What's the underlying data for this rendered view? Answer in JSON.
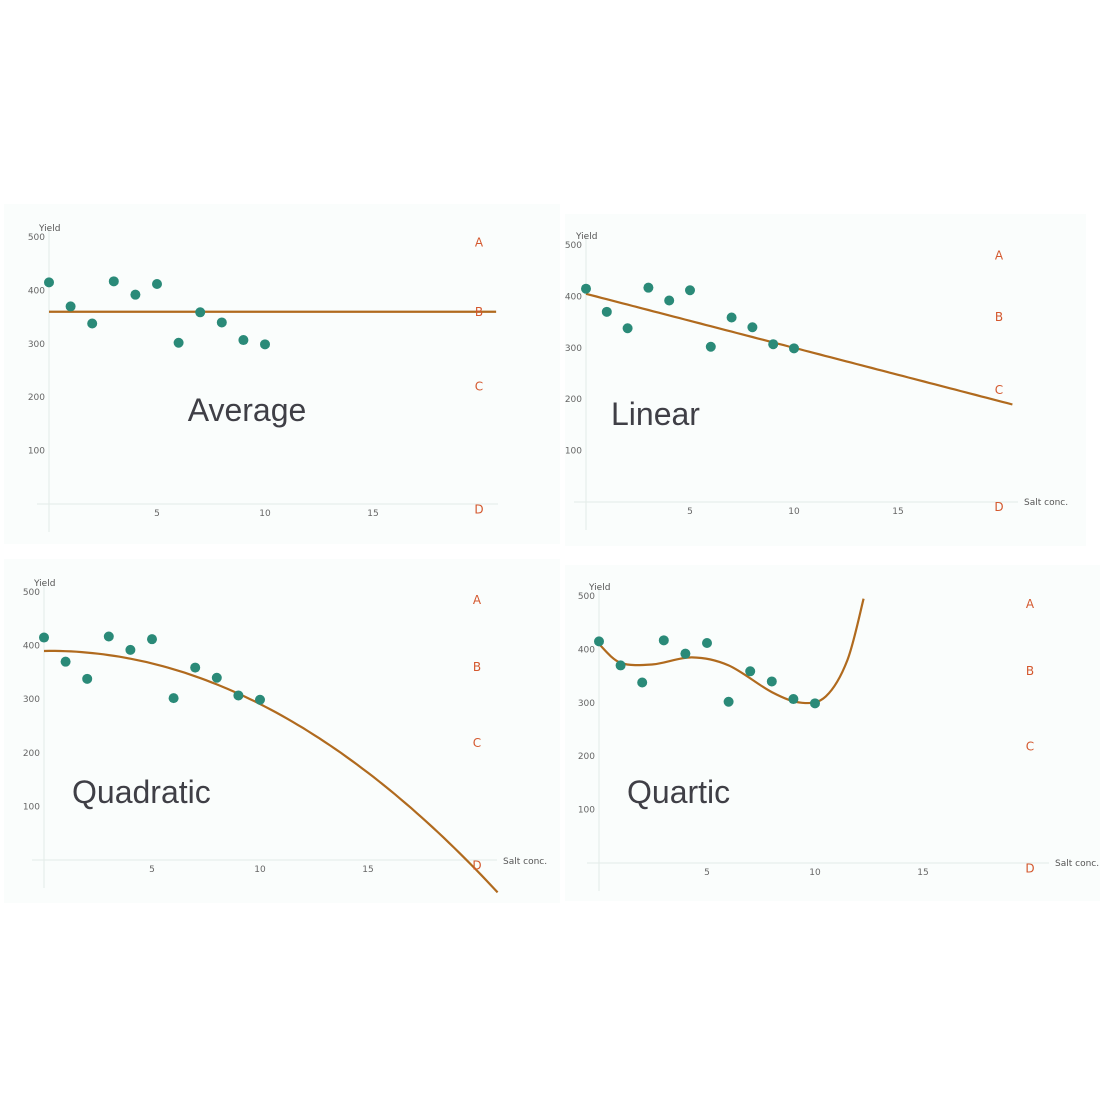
{
  "colors": {
    "panel_background": "#fafdfc",
    "axis": "#e3ebe8",
    "points": "#2a8a78",
    "fit_line": "#b06a1e",
    "markers": "#d4582e"
  },
  "chart_data": [
    {
      "type": "scatter",
      "title": "Average",
      "model": "average",
      "ylabel": "Yield",
      "xlabel": "",
      "xlim": [
        -0.3,
        22
      ],
      "ylim": [
        -10,
        500
      ],
      "xticks": [
        5,
        10,
        15
      ],
      "yticks": [
        100,
        200,
        300,
        400,
        500
      ],
      "x": [
        0,
        1,
        2,
        3,
        4,
        5,
        6,
        7,
        8,
        9,
        10
      ],
      "y": [
        415,
        370,
        338,
        417,
        392,
        412,
        302,
        359,
        340,
        307,
        299
      ],
      "fit": {
        "y": 360
      },
      "markers": [
        {
          "label": "A",
          "y": 490
        },
        {
          "label": "B",
          "y": 360
        },
        {
          "label": "C",
          "y": 220
        },
        {
          "label": "D",
          "y": -10
        }
      ]
    },
    {
      "type": "scatter",
      "title": "Linear",
      "model": "linear",
      "ylabel": "Yield",
      "xlabel": "Salt conc.",
      "xlim": [
        -0.3,
        22
      ],
      "ylim": [
        -10,
        500
      ],
      "xticks": [
        5,
        10,
        15
      ],
      "yticks": [
        100,
        200,
        300,
        400,
        500
      ],
      "x": [
        0,
        1,
        2,
        3,
        4,
        5,
        6,
        7,
        8,
        9,
        10
      ],
      "y": [
        415,
        370,
        338,
        417,
        392,
        412,
        302,
        359,
        340,
        307,
        299
      ],
      "fit": {
        "intercept": 405,
        "slope": -10.5,
        "x_end": 20.5
      },
      "markers": [
        {
          "label": "A",
          "y": 480
        },
        {
          "label": "B",
          "y": 360
        },
        {
          "label": "C",
          "y": 218
        },
        {
          "label": "D",
          "y": -10
        }
      ]
    },
    {
      "type": "scatter",
      "title": "Quadratic",
      "model": "quadratic",
      "ylabel": "Yield",
      "xlabel": "Salt conc.",
      "xlim": [
        -0.3,
        22
      ],
      "ylim": [
        -10,
        500
      ],
      "xticks": [
        5,
        10,
        15
      ],
      "yticks": [
        100,
        200,
        300,
        400,
        500
      ],
      "x": [
        0,
        1,
        2,
        3,
        4,
        5,
        6,
        7,
        8,
        9,
        10
      ],
      "y": [
        415,
        370,
        338,
        417,
        392,
        412,
        302,
        359,
        340,
        307,
        299
      ],
      "fit": {
        "a": -1.05,
        "b": 0.6,
        "c": 390,
        "x_end": 21
      },
      "markers": [
        {
          "label": "A",
          "y": 485
        },
        {
          "label": "B",
          "y": 360
        },
        {
          "label": "C",
          "y": 218
        },
        {
          "label": "D",
          "y": -10
        }
      ]
    },
    {
      "type": "scatter",
      "title": "Quartic",
      "model": "quartic",
      "ylabel": "Yield",
      "xlabel": "Salt conc.",
      "xlim": [
        -0.3,
        22
      ],
      "ylim": [
        -10,
        500
      ],
      "xticks": [
        5,
        10,
        15
      ],
      "yticks": [
        100,
        200,
        300,
        400,
        500
      ],
      "x": [
        0,
        1,
        2,
        3,
        4,
        5,
        6,
        7,
        8,
        9,
        10
      ],
      "y": [
        415,
        370,
        338,
        417,
        392,
        412,
        302,
        359,
        340,
        307,
        299
      ],
      "fit": {
        "knots": [
          [
            0,
            410
          ],
          [
            1,
            375
          ],
          [
            2.5,
            372
          ],
          [
            4.3,
            385
          ],
          [
            6,
            370
          ],
          [
            8,
            320
          ],
          [
            9.4,
            300
          ],
          [
            10.5,
            312
          ],
          [
            11.5,
            380
          ],
          [
            12.25,
            495
          ]
        ]
      },
      "markers": [
        {
          "label": "A",
          "y": 485
        },
        {
          "label": "B",
          "y": 360
        },
        {
          "label": "C",
          "y": 218
        },
        {
          "label": "D",
          "y": -10
        }
      ]
    }
  ]
}
